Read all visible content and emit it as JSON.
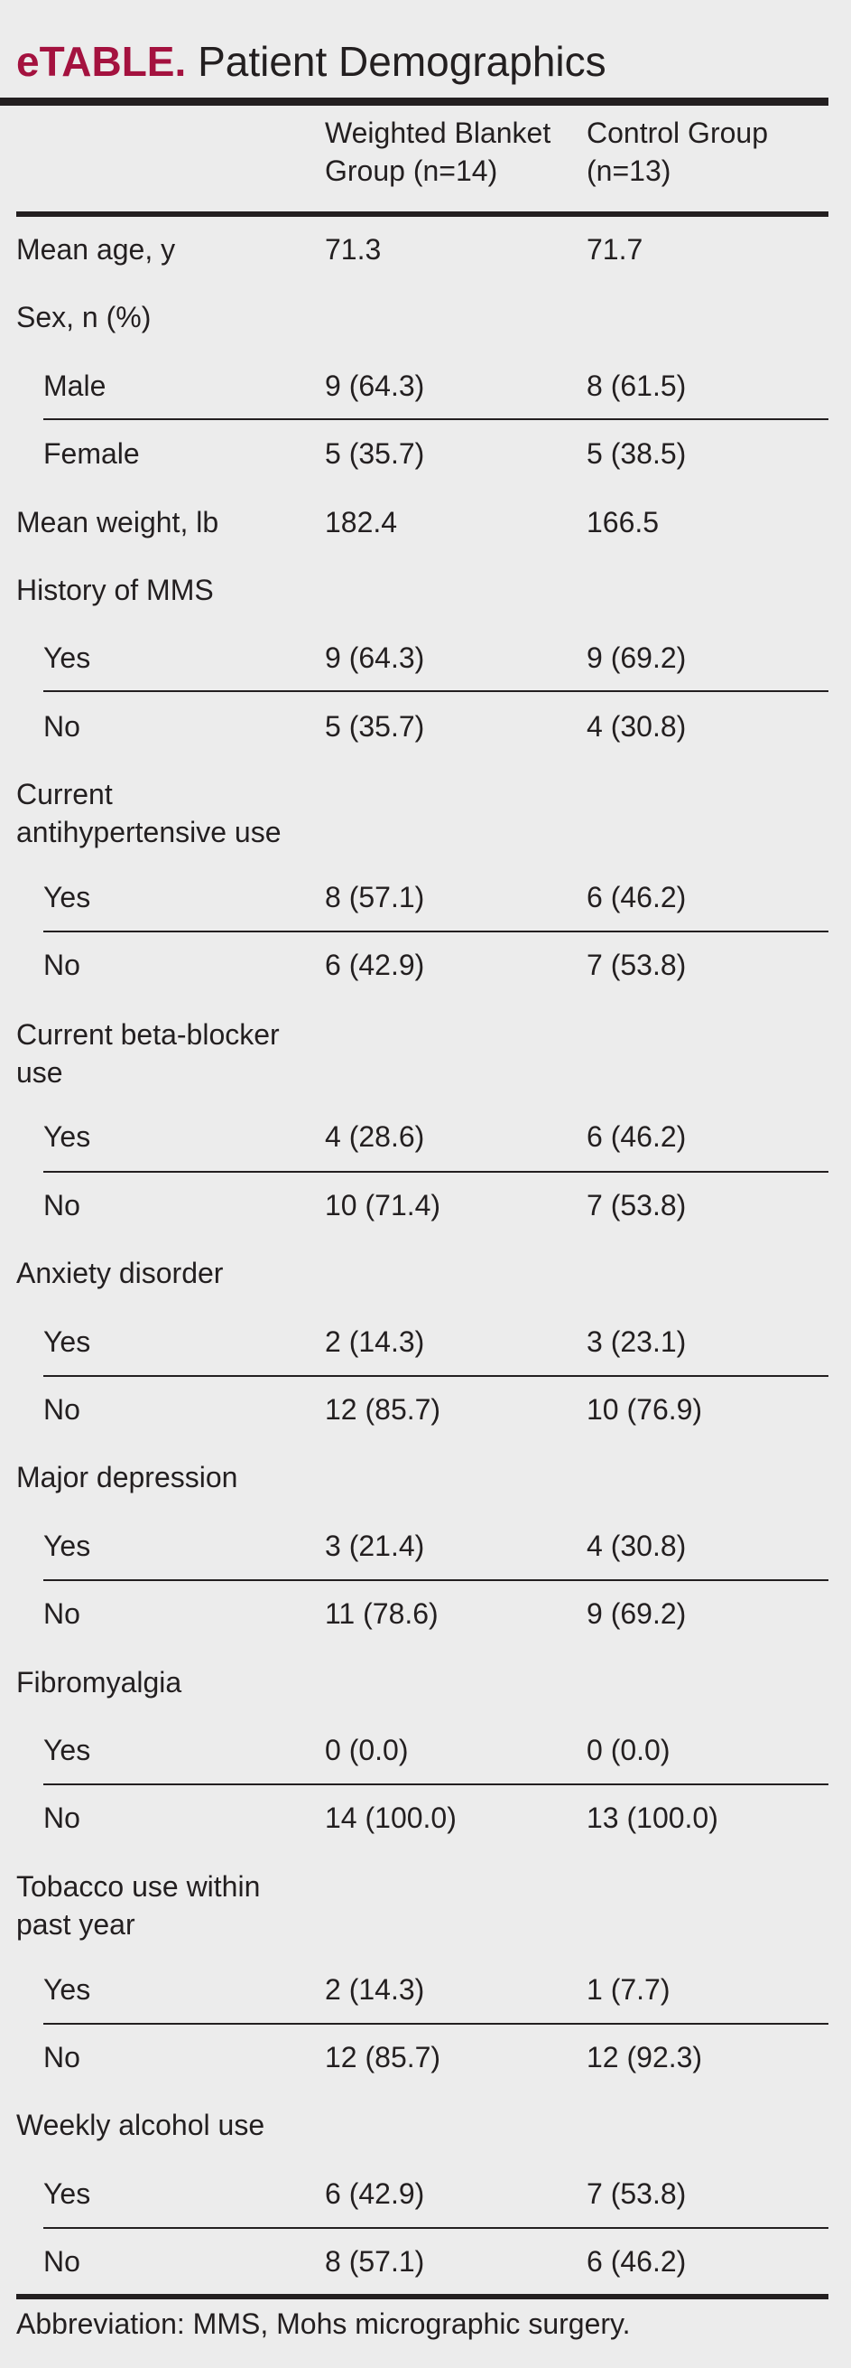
{
  "title": {
    "tag": "eTABLE.",
    "text": "Patient Demographics"
  },
  "columns": [
    {
      "line1": "Weighted Blanket",
      "line2": "Group (n=14)"
    },
    {
      "line1": "Control Group",
      "line2": "(n=13)"
    }
  ],
  "rows": [
    {
      "label": "Mean age, y",
      "c1": "71.3",
      "c2": "71.7"
    },
    {
      "label": "Sex, n (%)",
      "c1": "",
      "c2": ""
    },
    {
      "label": "Male",
      "c1": "9 (64.3)",
      "c2": "8 (61.5)"
    },
    {
      "label": "Female",
      "c1": "5 (35.7)",
      "c2": "5 (38.5)"
    },
    {
      "label": "Mean weight, lb",
      "c1": "182.4",
      "c2": "166.5"
    },
    {
      "label": "History of MMS",
      "c1": "",
      "c2": ""
    },
    {
      "label": "Yes",
      "c1": "9 (64.3)",
      "c2": "9 (69.2)"
    },
    {
      "label": "No",
      "c1": "5 (35.7)",
      "c2": "4 (30.8)"
    },
    {
      "label": "Current",
      "label2": "antihypertensive use",
      "c1": "",
      "c2": ""
    },
    {
      "label": "Yes",
      "c1": "8 (57.1)",
      "c2": "6 (46.2)"
    },
    {
      "label": "No",
      "c1": "6 (42.9)",
      "c2": "7 (53.8)"
    },
    {
      "label": "Current beta-blocker",
      "label2": "use",
      "c1": "",
      "c2": ""
    },
    {
      "label": "Yes",
      "c1": "4 (28.6)",
      "c2": "6 (46.2)"
    },
    {
      "label": "No",
      "c1": "10 (71.4)",
      "c2": "7 (53.8)"
    },
    {
      "label": "Anxiety disorder",
      "c1": "",
      "c2": ""
    },
    {
      "label": "Yes",
      "c1": "2 (14.3)",
      "c2": "3 (23.1)"
    },
    {
      "label": "No",
      "c1": "12 (85.7)",
      "c2": "10 (76.9)"
    },
    {
      "label": "Major depression",
      "c1": "",
      "c2": ""
    },
    {
      "label": "Yes",
      "c1": "3 (21.4)",
      "c2": "4 (30.8)"
    },
    {
      "label": "No",
      "c1": "11 (78.6)",
      "c2": "9 (69.2)"
    },
    {
      "label": "Fibromyalgia",
      "c1": "",
      "c2": ""
    },
    {
      "label": "Yes",
      "c1": "0 (0.0)",
      "c2": "0 (0.0)"
    },
    {
      "label": "No",
      "c1": "14 (100.0)",
      "c2": "13 (100.0)"
    },
    {
      "label": "Tobacco use within",
      "label2": "past year",
      "c1": "",
      "c2": ""
    },
    {
      "label": "Yes",
      "c1": "2 (14.3)",
      "c2": "1 (7.7)"
    },
    {
      "label": "No",
      "c1": "12 (85.7)",
      "c2": "12 (92.3)"
    },
    {
      "label": "Weekly alcohol use",
      "c1": "",
      "c2": ""
    },
    {
      "label": "Yes",
      "c1": "6 (42.9)",
      "c2": "7 (53.8)"
    },
    {
      "label": "No",
      "c1": "8 (57.1)",
      "c2": "6 (46.2)"
    }
  ],
  "footnote": "Abbreviation: MMS, Mohs micrographic surgery."
}
